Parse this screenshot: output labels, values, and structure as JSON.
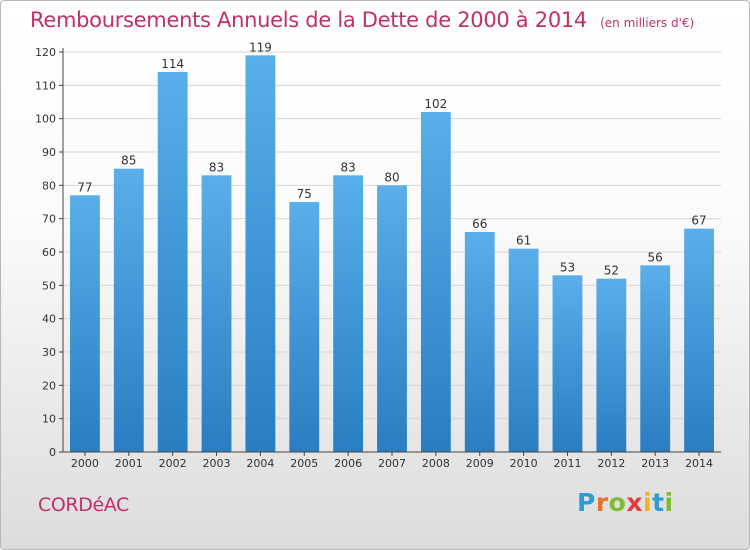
{
  "header": {
    "title": "Remboursements Annuels de la Dette de 2000 à 2014",
    "unit": "(en milliers d'€)"
  },
  "commune": "CORDéAC",
  "brand": {
    "letters": [
      "P",
      "r",
      "o",
      "x",
      "i",
      "t",
      "i"
    ],
    "colors": [
      "#2f9bd6",
      "#e8722a",
      "#7dbb2f",
      "#e43a3a",
      "#f2b418",
      "#2f9bd6",
      "#7dbb2f"
    ]
  },
  "chart_data": {
    "type": "bar",
    "title": "Remboursements Annuels de la Dette de 2000 à 2014",
    "subtitle": "(en milliers d'€)",
    "categories": [
      "2000",
      "2001",
      "2002",
      "2003",
      "2004",
      "2005",
      "2006",
      "2007",
      "2008",
      "2009",
      "2010",
      "2011",
      "2012",
      "2013",
      "2014"
    ],
    "values": [
      77,
      85,
      114,
      83,
      119,
      75,
      83,
      80,
      102,
      66,
      61,
      53,
      52,
      56,
      67
    ],
    "ylim": [
      0,
      120
    ],
    "yticks": [
      0,
      10,
      20,
      30,
      40,
      50,
      60,
      70,
      80,
      90,
      100,
      110,
      120
    ],
    "grid": true,
    "colors": {
      "bar_top": "#5aaeea",
      "bar_bottom": "#2a7dc0",
      "grid": "#d7d7d7"
    }
  }
}
